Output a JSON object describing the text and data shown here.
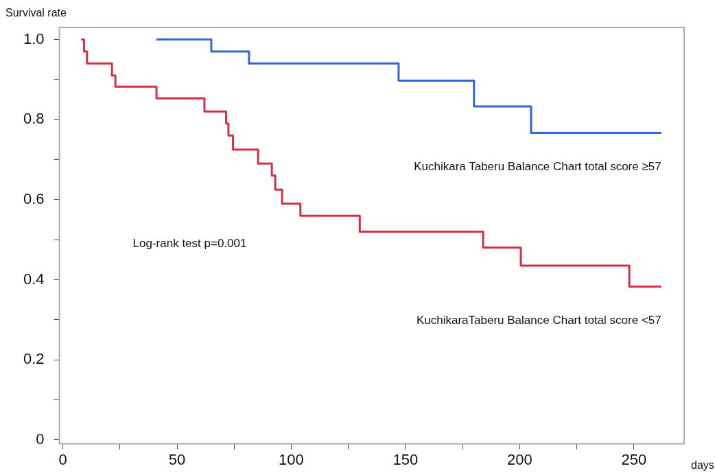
{
  "chart_data": {
    "type": "step",
    "xlabel": "days",
    "ylabel": "Survival rate",
    "xlim": [
      -1.5,
      272
    ],
    "ylim": [
      -0.01,
      1.03
    ],
    "xticks": [
      0,
      {
        "value": 25,
        "label": null
      },
      50,
      {
        "value": 75,
        "label": null
      },
      100,
      {
        "value": 125,
        "label": null
      },
      150,
      {
        "value": 175,
        "label": null
      },
      200,
      {
        "value": 225,
        "label": null
      },
      250
    ],
    "yticks": [
      0,
      {
        "value": 0.1,
        "label": null
      },
      {
        "value": 0.2,
        "label": "0.2"
      },
      {
        "value": 0.3,
        "label": null
      },
      {
        "value": 0.4,
        "label": "0.4"
      },
      {
        "value": 0.5,
        "label": null
      },
      {
        "value": 0.6,
        "label": "0.6"
      },
      {
        "value": 0.7,
        "label": null
      },
      {
        "value": 0.8,
        "label": "0.8"
      },
      {
        "value": 0.9,
        "label": null
      },
      {
        "value": 1.0,
        "label": "1.0"
      }
    ],
    "grid": false,
    "legend": false,
    "marker": "none",
    "line_style": "solid",
    "annotations": [
      "Log-rank test p=0.001"
    ],
    "series": [
      {
        "name": "Kuchikara Taberu Balance Chart total score ≥57",
        "color": "#3366dd",
        "x": [
          41,
          65,
          81.5,
          147,
          180,
          205,
          262
        ],
        "values": [
          1.0,
          0.97,
          0.94,
          0.897,
          0.833,
          0.767,
          0.767
        ]
      },
      {
        "name": "KuchikaraTaberu Balance Chart total score <57",
        "color": "#d42f45",
        "x": [
          8,
          9.3,
          10.6,
          21.5,
          23,
          41,
          62,
          71.5,
          72.5,
          74.5,
          85.5,
          91.5,
          93,
          96,
          104,
          130,
          184,
          200.5,
          248,
          262
        ],
        "values": [
          1.0,
          0.97,
          0.94,
          0.91,
          0.882,
          0.853,
          0.82,
          0.79,
          0.76,
          0.725,
          0.69,
          0.66,
          0.625,
          0.59,
          0.56,
          0.52,
          0.48,
          0.435,
          0.383,
          0.383
        ]
      }
    ]
  }
}
